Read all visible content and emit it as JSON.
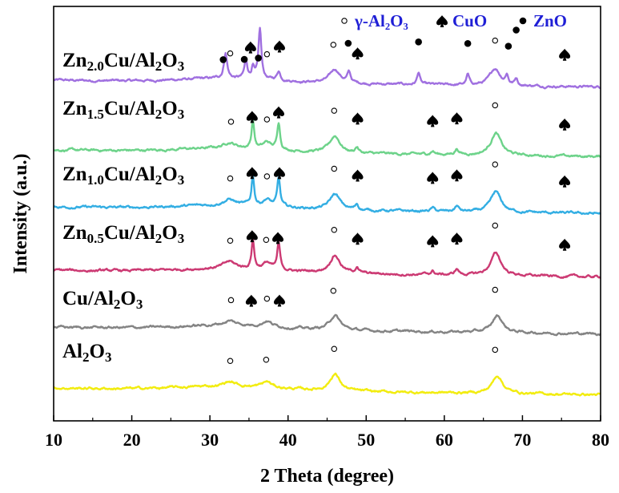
{
  "chart_data": {
    "type": "line",
    "xlabel": "2 Theta (degree)",
    "ylabel": "Intensity (a.u.)",
    "xlim": [
      10,
      80
    ],
    "xticks": [
      "10",
      "20",
      "30",
      "40",
      "50",
      "60",
      "70",
      "80"
    ],
    "yticks": "none",
    "grid": false,
    "legend": {
      "placement": "top-right",
      "entries": [
        {
          "marker": "open-circle",
          "label": "γ-Al₂O₃"
        },
        {
          "marker": "spade",
          "label": "CuO"
        },
        {
          "marker": "filled-circle",
          "label": "ZnO"
        }
      ]
    },
    "series": [
      {
        "name": "Zn2.0Cu/Al2O3",
        "label_parts": [
          [
            "Zn",
            ""
          ],
          [
            "2.0",
            "sub"
          ],
          [
            "Cu/Al",
            ""
          ],
          [
            "2",
            "sub"
          ],
          [
            "O",
            ""
          ],
          [
            "3",
            "sub"
          ]
        ],
        "color": "#a070e0",
        "peaks": [
          {
            "x": 32.0,
            "h": 2.3,
            "w": 0.25
          },
          {
            "x": 34.6,
            "h": 1.6,
            "w": 0.22
          },
          {
            "x": 35.5,
            "h": 1.0,
            "w": 0.2
          },
          {
            "x": 36.4,
            "h": 4.4,
            "w": 0.22
          },
          {
            "x": 38.8,
            "h": 0.8,
            "w": 0.25
          },
          {
            "x": 46.0,
            "h": 1.2,
            "w": 0.8
          },
          {
            "x": 47.8,
            "h": 0.9,
            "w": 0.25
          },
          {
            "x": 56.7,
            "h": 1.1,
            "w": 0.22
          },
          {
            "x": 63.0,
            "h": 0.9,
            "w": 0.22
          },
          {
            "x": 66.5,
            "h": 1.5,
            "w": 0.8
          },
          {
            "x": 68.0,
            "h": 0.8,
            "w": 0.22
          },
          {
            "x": 69.2,
            "h": 0.6,
            "w": 0.22
          }
        ],
        "markers": [
          {
            "x": 31.7,
            "type": "filled-circle",
            "row": 0
          },
          {
            "x": 32.6,
            "type": "open-circle",
            "row": 1
          },
          {
            "x": 34.4,
            "type": "filled-circle",
            "row": 0
          },
          {
            "x": 35.2,
            "type": "spade",
            "row": 1
          },
          {
            "x": 36.2,
            "type": "filled-circle",
            "row": -1
          },
          {
            "x": 37.3,
            "type": "open-circle",
            "row": 1
          },
          {
            "x": 38.9,
            "type": "spade",
            "row": 1
          },
          {
            "x": 45.8,
            "type": "open-circle",
            "row": 1
          },
          {
            "x": 47.7,
            "type": "filled-circle",
            "row": 1
          },
          {
            "x": 48.9,
            "type": "spade",
            "row": 1
          },
          {
            "x": 56.7,
            "type": "filled-circle",
            "row": 1
          },
          {
            "x": 63.0,
            "type": "filled-circle",
            "row": 1
          },
          {
            "x": 66.5,
            "type": "open-circle",
            "row": 1
          },
          {
            "x": 68.2,
            "type": "filled-circle",
            "row": 1
          },
          {
            "x": 69.2,
            "type": "filled-circle",
            "row": 2
          },
          {
            "x": 75.4,
            "type": "spade",
            "row": 1
          }
        ]
      },
      {
        "name": "Zn1.5Cu/Al2O3",
        "label_parts": [
          [
            "Zn",
            ""
          ],
          [
            "1.5",
            "sub"
          ],
          [
            "Cu/Al",
            ""
          ],
          [
            "2",
            "sub"
          ],
          [
            "O",
            ""
          ],
          [
            "3",
            "sub"
          ]
        ],
        "color": "#6dd38a",
        "peaks": [
          {
            "x": 32.5,
            "h": 0.5,
            "w": 0.9
          },
          {
            "x": 35.5,
            "h": 2.5,
            "w": 0.2
          },
          {
            "x": 37.3,
            "h": 0.6,
            "w": 0.6
          },
          {
            "x": 38.8,
            "h": 2.4,
            "w": 0.22
          },
          {
            "x": 46.0,
            "h": 1.5,
            "w": 0.8
          },
          {
            "x": 48.8,
            "h": 0.5,
            "w": 0.25
          },
          {
            "x": 58.5,
            "h": 0.3,
            "w": 0.3
          },
          {
            "x": 61.6,
            "h": 0.5,
            "w": 0.3
          },
          {
            "x": 66.6,
            "h": 2.0,
            "w": 0.8
          }
        ],
        "markers": [
          {
            "x": 32.7,
            "type": "open-circle",
            "row": 1
          },
          {
            "x": 35.4,
            "type": "spade",
            "row": 0
          },
          {
            "x": 37.3,
            "type": "open-circle",
            "row": 1
          },
          {
            "x": 38.8,
            "type": "spade",
            "row": 0
          },
          {
            "x": 45.9,
            "type": "open-circle",
            "row": 1
          },
          {
            "x": 48.9,
            "type": "spade",
            "row": 1
          },
          {
            "x": 58.5,
            "type": "spade",
            "row": 1
          },
          {
            "x": 61.6,
            "type": "spade",
            "row": 1
          },
          {
            "x": 66.5,
            "type": "open-circle",
            "row": 1
          },
          {
            "x": 75.4,
            "type": "spade",
            "row": 1
          }
        ]
      },
      {
        "name": "Zn1.0Cu/Al2O3",
        "label_parts": [
          [
            "Zn",
            ""
          ],
          [
            "1.0",
            "sub"
          ],
          [
            "Cu/Al",
            ""
          ],
          [
            "2",
            "sub"
          ],
          [
            "O",
            ""
          ],
          [
            "3",
            "sub"
          ]
        ],
        "color": "#33aee3",
        "peaks": [
          {
            "x": 32.5,
            "h": 0.5,
            "w": 0.9
          },
          {
            "x": 35.5,
            "h": 2.6,
            "w": 0.2
          },
          {
            "x": 37.3,
            "h": 0.6,
            "w": 0.6
          },
          {
            "x": 38.8,
            "h": 2.5,
            "w": 0.22
          },
          {
            "x": 46.0,
            "h": 1.4,
            "w": 0.8
          },
          {
            "x": 48.8,
            "h": 0.5,
            "w": 0.25
          },
          {
            "x": 58.5,
            "h": 0.3,
            "w": 0.3
          },
          {
            "x": 61.6,
            "h": 0.5,
            "w": 0.3
          },
          {
            "x": 66.6,
            "h": 1.8,
            "w": 0.8
          }
        ],
        "markers": [
          {
            "x": 32.6,
            "type": "open-circle",
            "row": 1
          },
          {
            "x": 35.4,
            "type": "spade",
            "row": 0
          },
          {
            "x": 37.3,
            "type": "open-circle",
            "row": 1
          },
          {
            "x": 38.9,
            "type": "spade",
            "row": 0
          },
          {
            "x": 45.9,
            "type": "open-circle",
            "row": 1
          },
          {
            "x": 48.9,
            "type": "spade",
            "row": 1
          },
          {
            "x": 58.5,
            "type": "spade",
            "row": 1
          },
          {
            "x": 61.6,
            "type": "spade",
            "row": 1
          },
          {
            "x": 66.5,
            "type": "open-circle",
            "row": 1
          },
          {
            "x": 75.4,
            "type": "spade",
            "row": 1
          }
        ]
      },
      {
        "name": "Zn0.5Cu/Al2O3",
        "label_parts": [
          [
            "Zn",
            ""
          ],
          [
            "0.5",
            "sub"
          ],
          [
            "Cu/Al",
            ""
          ],
          [
            "2",
            "sub"
          ],
          [
            "O",
            ""
          ],
          [
            "3",
            "sub"
          ]
        ],
        "color": "#cc3a73",
        "peaks": [
          {
            "x": 32.5,
            "h": 0.6,
            "w": 0.9
          },
          {
            "x": 35.5,
            "h": 2.6,
            "w": 0.2
          },
          {
            "x": 37.3,
            "h": 0.6,
            "w": 0.6
          },
          {
            "x": 38.8,
            "h": 2.3,
            "w": 0.22
          },
          {
            "x": 46.0,
            "h": 1.6,
            "w": 0.8
          },
          {
            "x": 48.8,
            "h": 0.5,
            "w": 0.25
          },
          {
            "x": 58.5,
            "h": 0.3,
            "w": 0.3
          },
          {
            "x": 61.6,
            "h": 0.5,
            "w": 0.3
          },
          {
            "x": 66.6,
            "h": 2.0,
            "w": 0.8
          }
        ],
        "markers": [
          {
            "x": 32.6,
            "type": "open-circle",
            "row": 1
          },
          {
            "x": 35.4,
            "type": "spade",
            "row": 0
          },
          {
            "x": 37.2,
            "type": "open-circle",
            "row": 1
          },
          {
            "x": 38.7,
            "type": "spade",
            "row": 0
          },
          {
            "x": 45.9,
            "type": "open-circle",
            "row": 1
          },
          {
            "x": 48.9,
            "type": "spade",
            "row": 1
          },
          {
            "x": 58.5,
            "type": "spade",
            "row": 1
          },
          {
            "x": 61.6,
            "type": "spade",
            "row": 1
          },
          {
            "x": 66.5,
            "type": "open-circle",
            "row": 1
          },
          {
            "x": 75.4,
            "type": "spade",
            "row": 1
          }
        ]
      },
      {
        "name": "Cu/Al2O3",
        "label_parts": [
          [
            "Cu/Al",
            ""
          ],
          [
            "2",
            "sub"
          ],
          [
            "O",
            ""
          ],
          [
            "3",
            "sub"
          ]
        ],
        "color": "#848484",
        "peaks": [
          {
            "x": 32.5,
            "h": 0.4,
            "w": 0.9
          },
          {
            "x": 37.3,
            "h": 0.5,
            "w": 0.7
          },
          {
            "x": 46.0,
            "h": 1.3,
            "w": 0.8
          },
          {
            "x": 66.8,
            "h": 1.5,
            "w": 0.8
          }
        ],
        "markers": [
          {
            "x": 32.7,
            "type": "open-circle",
            "row": 1
          },
          {
            "x": 35.3,
            "type": "spade",
            "row": 1
          },
          {
            "x": 37.3,
            "type": "open-circle",
            "row": 1
          },
          {
            "x": 38.9,
            "type": "spade",
            "row": 1
          },
          {
            "x": 45.8,
            "type": "open-circle",
            "row": 1
          },
          {
            "x": 66.5,
            "type": "open-circle",
            "row": 1
          }
        ]
      },
      {
        "name": "Al2O3",
        "label_parts": [
          [
            "Al",
            ""
          ],
          [
            "2",
            "sub"
          ],
          [
            "O",
            ""
          ],
          [
            "3",
            "sub"
          ]
        ],
        "color": "#f2ec10",
        "peaks": [
          {
            "x": 32.5,
            "h": 0.4,
            "w": 0.9
          },
          {
            "x": 37.3,
            "h": 0.5,
            "w": 0.7
          },
          {
            "x": 46.0,
            "h": 1.5,
            "w": 0.8
          },
          {
            "x": 66.8,
            "h": 1.6,
            "w": 0.8
          }
        ],
        "markers": [
          {
            "x": 32.6,
            "type": "open-circle",
            "row": 1
          },
          {
            "x": 37.2,
            "type": "open-circle",
            "row": 1
          },
          {
            "x": 45.9,
            "type": "open-circle",
            "row": 1
          },
          {
            "x": 66.5,
            "type": "open-circle",
            "row": 1
          }
        ]
      }
    ]
  }
}
